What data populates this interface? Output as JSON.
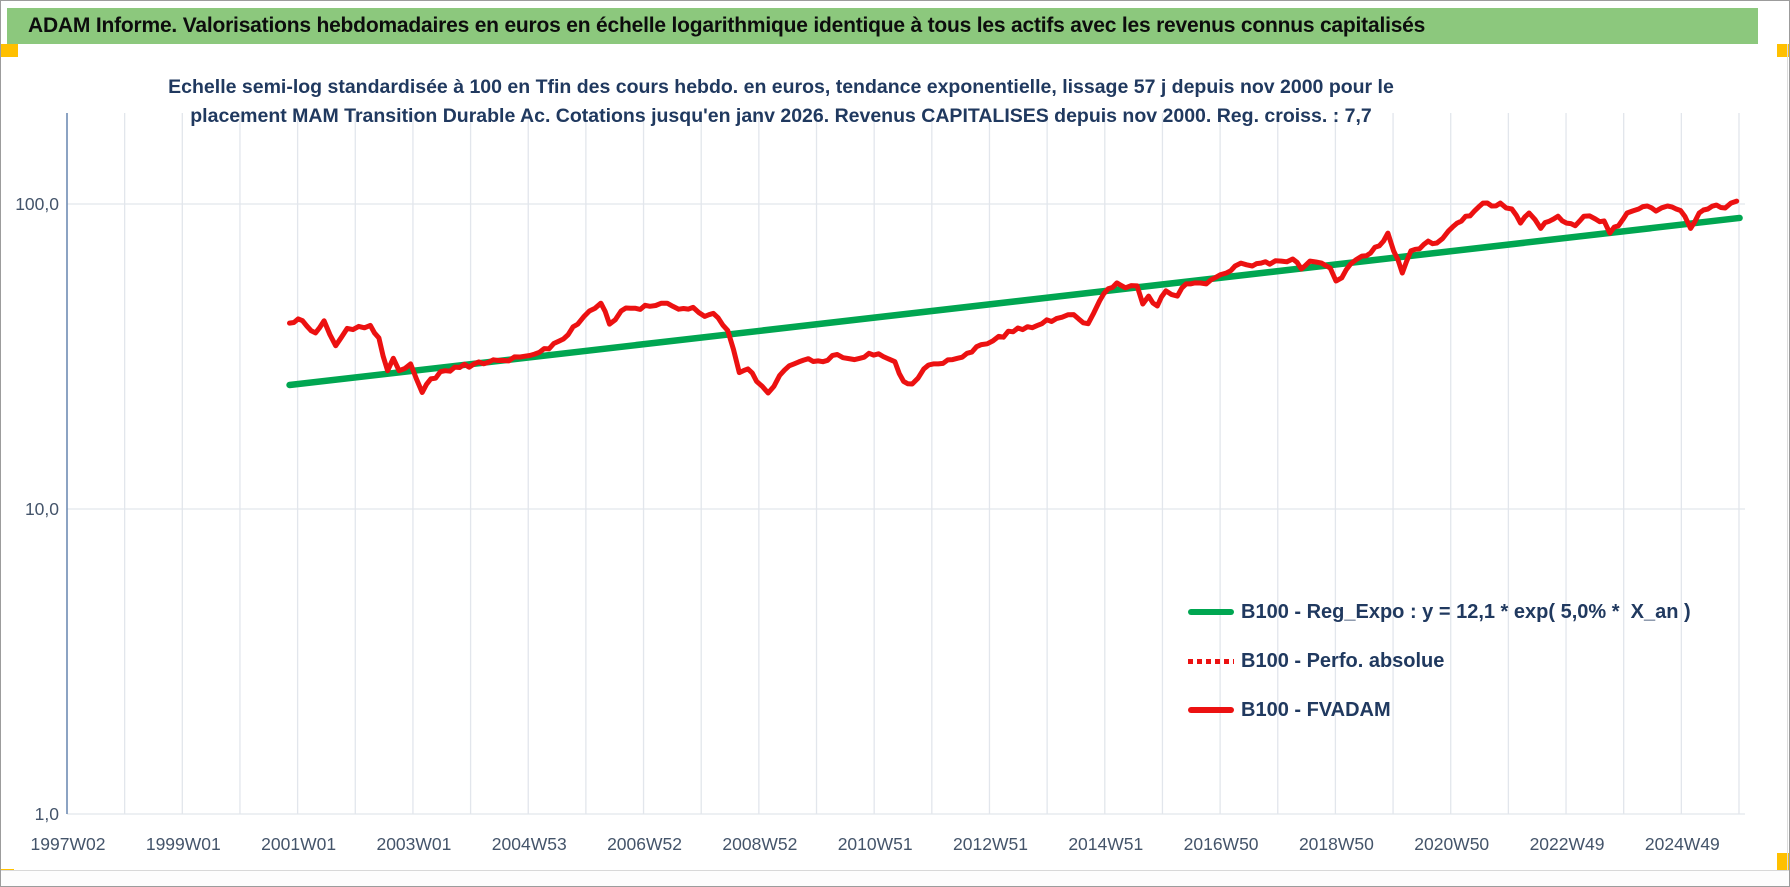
{
  "header": {
    "title": "ADAM Informe. Valorisations hebdomadaires en euros en échelle logarithmique identique à tous les actifs avec les revenus connus capitalisés"
  },
  "colors": {
    "header_green": "#8CC87D",
    "accent_yellow": "#FFC000",
    "title_navy": "#20395F",
    "tick_text": "#44546A",
    "grid": "#E2E6EC",
    "axis_blue": "#6F8CB4",
    "trend_green": "#00A651",
    "series_red": "#EC1111",
    "bottom_rule": "#D8D8D8"
  },
  "chart_data": {
    "type": "line",
    "title_line1": "Echelle semi-log standardisée à 100 en Tfin des cours hebdo. en euros, tendance exponentielle, lissage 57 j depuis nov 2000 pour le",
    "title_line2": "placement MAM Transition Durable Ac. Cotations jusqu'en janv 2026. Revenus CAPITALISES depuis nov 2000. Reg. croiss. : 7,7",
    "y_axis": {
      "scale": "log",
      "tick_labels": [
        "100,0",
        "10,0",
        "1,0"
      ],
      "tick_values": [
        100,
        10,
        1
      ],
      "range": [
        1,
        200
      ],
      "grid": true
    },
    "x_axis": {
      "tick_labels": [
        "1997W02",
        "1999W01",
        "2001W01",
        "2003W01",
        "2004W53",
        "2006W52",
        "2008W52",
        "2010W51",
        "2012W51",
        "2014W51",
        "2016W50",
        "2018W50",
        "2020W50",
        "2022W49",
        "2024W49"
      ],
      "start_year": 1997.04,
      "years_per_tick": 2,
      "grid_interval_years": 1
    },
    "legend": [
      {
        "label": "B100 - Reg_Expo : y = 12,1 * exp( 5,0% *  X_an )",
        "color": "#00A651",
        "style": "solid"
      },
      {
        "label": "B100 - Perfo. absolue",
        "color": "#EC1111",
        "style": "dotted"
      },
      {
        "label": "B100 - FVADAM",
        "color": "#EC1111",
        "style": "solid"
      }
    ],
    "legend_position": "center-right",
    "series": [
      {
        "name": "B100 - Reg_Expo",
        "kind": "trend",
        "color": "#00A651",
        "points": [
          [
            2000.9,
            25.5
          ],
          [
            2026.05,
            90.0
          ]
        ]
      },
      {
        "name": "B100 - FVADAM",
        "kind": "weekly",
        "color": "#EC1111",
        "points": [
          [
            2000.9,
            40.7
          ],
          [
            2001.05,
            42.0
          ],
          [
            2001.2,
            39.8
          ],
          [
            2001.35,
            37.8
          ],
          [
            2001.5,
            41.4
          ],
          [
            2001.7,
            34.3
          ],
          [
            2001.9,
            39.1
          ],
          [
            2002.1,
            39.7
          ],
          [
            2002.3,
            40.0
          ],
          [
            2002.45,
            36.4
          ],
          [
            2002.6,
            28.4
          ],
          [
            2002.7,
            31.2
          ],
          [
            2002.8,
            28.4
          ],
          [
            2003.0,
            29.9
          ],
          [
            2003.2,
            24.1
          ],
          [
            2003.35,
            26.7
          ],
          [
            2003.6,
            28.4
          ],
          [
            2003.85,
            29.1
          ],
          [
            2004.1,
            29.9
          ],
          [
            2004.35,
            30.3
          ],
          [
            2004.6,
            30.7
          ],
          [
            2004.9,
            31.5
          ],
          [
            2005.15,
            32.2
          ],
          [
            2005.4,
            33.5
          ],
          [
            2005.65,
            36.1
          ],
          [
            2005.9,
            40.4
          ],
          [
            2006.1,
            44.6
          ],
          [
            2006.3,
            47.3
          ],
          [
            2006.45,
            40.4
          ],
          [
            2006.65,
            44.6
          ],
          [
            2006.9,
            45.5
          ],
          [
            2007.15,
            46.2
          ],
          [
            2007.45,
            47.3
          ],
          [
            2007.65,
            45.2
          ],
          [
            2007.9,
            45.8
          ],
          [
            2008.1,
            42.8
          ],
          [
            2008.25,
            43.8
          ],
          [
            2008.5,
            38.5
          ],
          [
            2008.7,
            28.0
          ],
          [
            2008.85,
            28.8
          ],
          [
            2009.0,
            26.2
          ],
          [
            2009.2,
            24.0
          ],
          [
            2009.4,
            27.4
          ],
          [
            2009.65,
            29.9
          ],
          [
            2009.9,
            31.1
          ],
          [
            2010.15,
            30.4
          ],
          [
            2010.4,
            32.1
          ],
          [
            2010.7,
            30.9
          ],
          [
            2010.95,
            32.4
          ],
          [
            2011.2,
            31.6
          ],
          [
            2011.4,
            30.4
          ],
          [
            2011.55,
            26.2
          ],
          [
            2011.7,
            25.7
          ],
          [
            2011.9,
            28.8
          ],
          [
            2012.15,
            29.9
          ],
          [
            2012.4,
            30.9
          ],
          [
            2012.65,
            32.4
          ],
          [
            2012.9,
            34.6
          ],
          [
            2013.2,
            36.8
          ],
          [
            2013.45,
            38.1
          ],
          [
            2013.7,
            39.6
          ],
          [
            2013.95,
            40.5
          ],
          [
            2014.2,
            42.1
          ],
          [
            2014.5,
            43.4
          ],
          [
            2014.75,
            40.5
          ],
          [
            2014.95,
            48.1
          ],
          [
            2015.1,
            52.7
          ],
          [
            2015.25,
            55.1
          ],
          [
            2015.4,
            53.1
          ],
          [
            2015.6,
            53.9
          ],
          [
            2015.7,
            47.0
          ],
          [
            2015.8,
            49.9
          ],
          [
            2015.95,
            46.3
          ],
          [
            2016.1,
            51.9
          ],
          [
            2016.3,
            49.9
          ],
          [
            2016.45,
            54.7
          ],
          [
            2016.6,
            55.1
          ],
          [
            2016.8,
            54.7
          ],
          [
            2016.95,
            57.3
          ],
          [
            2017.15,
            59.4
          ],
          [
            2017.3,
            62.6
          ],
          [
            2017.4,
            64.0
          ],
          [
            2017.6,
            62.6
          ],
          [
            2017.75,
            64.0
          ],
          [
            2017.9,
            63.5
          ],
          [
            2018.1,
            65.0
          ],
          [
            2018.3,
            66.0
          ],
          [
            2018.45,
            61.2
          ],
          [
            2018.6,
            65.0
          ],
          [
            2018.8,
            64.0
          ],
          [
            2018.95,
            61.7
          ],
          [
            2019.05,
            55.9
          ],
          [
            2019.15,
            57.3
          ],
          [
            2019.3,
            63.5
          ],
          [
            2019.5,
            67.5
          ],
          [
            2019.65,
            69.1
          ],
          [
            2019.8,
            72.9
          ],
          [
            2019.95,
            80.3
          ],
          [
            2020.05,
            70.2
          ],
          [
            2020.2,
            59.4
          ],
          [
            2020.35,
            70.2
          ],
          [
            2020.5,
            71.3
          ],
          [
            2020.65,
            75.6
          ],
          [
            2020.8,
            74.5
          ],
          [
            2021.0,
            81.5
          ],
          [
            2021.15,
            86.6
          ],
          [
            2021.3,
            91.2
          ],
          [
            2021.45,
            94.8
          ],
          [
            2021.6,
            100.7
          ],
          [
            2021.75,
            98.5
          ],
          [
            2021.9,
            100.7
          ],
          [
            2022.1,
            96.3
          ],
          [
            2022.25,
            86.6
          ],
          [
            2022.4,
            93.4
          ],
          [
            2022.6,
            83.2
          ],
          [
            2022.75,
            87.8
          ],
          [
            2022.9,
            91.2
          ],
          [
            2023.05,
            86.6
          ],
          [
            2023.2,
            84.9
          ],
          [
            2023.35,
            91.2
          ],
          [
            2023.55,
            89.3
          ],
          [
            2023.7,
            88.0
          ],
          [
            2023.8,
            80.3
          ],
          [
            2023.95,
            84.9
          ],
          [
            2024.1,
            93.4
          ],
          [
            2024.3,
            96.3
          ],
          [
            2024.45,
            98.5
          ],
          [
            2024.6,
            94.8
          ],
          [
            2024.8,
            98.5
          ],
          [
            2024.95,
            96.3
          ],
          [
            2025.1,
            91.2
          ],
          [
            2025.2,
            83.2
          ],
          [
            2025.35,
            93.4
          ],
          [
            2025.5,
            96.3
          ],
          [
            2025.65,
            99.2
          ],
          [
            2025.8,
            97.0
          ],
          [
            2025.9,
            100.7
          ],
          [
            2026.0,
            102.2
          ]
        ]
      }
    ]
  }
}
